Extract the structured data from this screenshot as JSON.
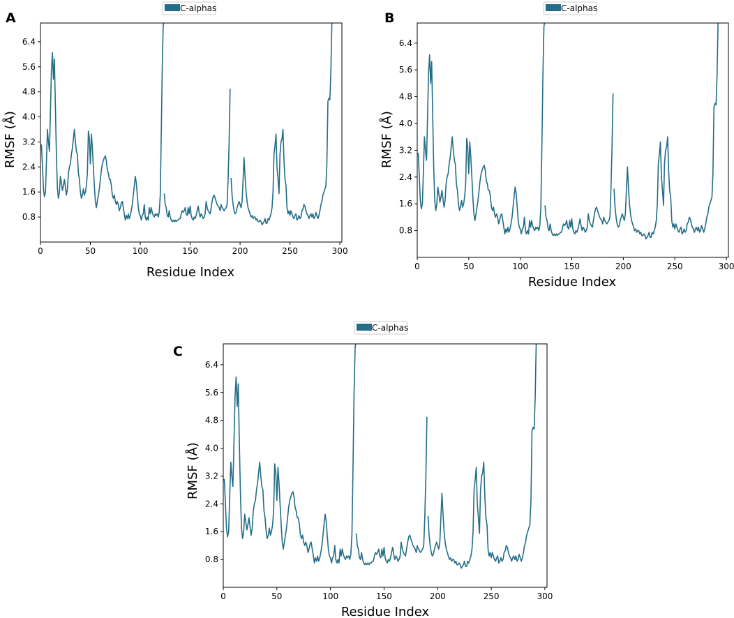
{
  "chart_data": [
    {
      "panel": "A",
      "type": "line",
      "xlabel": "Residue Index",
      "ylabel": "RMSF (Å)",
      "xlim": [
        0,
        302
      ],
      "ylim": [
        0,
        7.0
      ],
      "xticks": [
        0,
        50,
        100,
        150,
        200,
        250,
        300
      ],
      "yticks": [
        0.8,
        1.6,
        2.4,
        3.2,
        4.0,
        4.8,
        5.6,
        6.4
      ],
      "legend": {
        "label": "C-alphas",
        "position": "top-center"
      },
      "color": "#236d86",
      "series_ref": "rmsf"
    },
    {
      "panel": "B",
      "type": "line",
      "xlabel": "Residue Index",
      "ylabel": "RMSF (Å)",
      "xlim": [
        0,
        302
      ],
      "ylim": [
        0,
        7.0
      ],
      "xticks": [
        0,
        50,
        100,
        150,
        200,
        250,
        300
      ],
      "yticks": [
        0.8,
        1.6,
        2.4,
        3.2,
        4.0,
        4.8,
        5.6,
        6.4
      ],
      "legend": {
        "label": "C-alphas",
        "position": "top-center"
      },
      "color": "#236d86",
      "series_ref": "rmsf"
    },
    {
      "panel": "C",
      "type": "line",
      "xlabel": "Residue Index",
      "ylabel": "RMSF (Å)",
      "xlim": [
        0,
        302
      ],
      "ylim": [
        0,
        7.0
      ],
      "xticks": [
        0,
        50,
        100,
        150,
        200,
        250,
        300
      ],
      "yticks": [
        0.8,
        1.6,
        2.4,
        3.2,
        4.0,
        4.8,
        5.6,
        6.4
      ],
      "legend": {
        "label": "C-alphas",
        "position": "top-center"
      },
      "color": "#236d86",
      "series_ref": "rmsf"
    }
  ],
  "series": {
    "rmsf": [
      [
        [
          0,
          3.1
        ],
        [
          1,
          3.1
        ],
        [
          2,
          2.4
        ],
        [
          3,
          1.7
        ],
        [
          4,
          1.45
        ],
        [
          5,
          1.6
        ],
        [
          6,
          2.6
        ],
        [
          7,
          3.6
        ],
        [
          8,
          3.2
        ],
        [
          9,
          2.9
        ],
        [
          10,
          4.2
        ],
        [
          11,
          5.5
        ],
        [
          12,
          6.05
        ],
        [
          13,
          5.2
        ],
        [
          14,
          5.85
        ],
        [
          15,
          4.2
        ],
        [
          16,
          2.7
        ],
        [
          17,
          1.7
        ],
        [
          18,
          1.4
        ],
        [
          19,
          1.6
        ],
        [
          20,
          2.1
        ],
        [
          21,
          1.9
        ],
        [
          22,
          1.65
        ],
        [
          23,
          1.8
        ],
        [
          24,
          2.0
        ],
        [
          25,
          1.75
        ],
        [
          26,
          1.5
        ],
        [
          27,
          1.7
        ],
        [
          28,
          2.2
        ],
        [
          29,
          2.4
        ],
        [
          30,
          2.5
        ],
        [
          31,
          2.8
        ],
        [
          32,
          3.0
        ],
        [
          33,
          3.3
        ],
        [
          34,
          3.6
        ],
        [
          35,
          3.2
        ],
        [
          36,
          2.9
        ],
        [
          37,
          2.8
        ],
        [
          38,
          2.2
        ],
        [
          39,
          2.0
        ],
        [
          40,
          1.6
        ],
        [
          41,
          1.4
        ],
        [
          42,
          1.5
        ],
        [
          43,
          1.7
        ],
        [
          44,
          1.5
        ],
        [
          45,
          1.6
        ],
        [
          46,
          1.8
        ],
        [
          47,
          2.2
        ],
        [
          48,
          3.55
        ],
        [
          49,
          3.3
        ],
        [
          50,
          2.5
        ],
        [
          51,
          3.45
        ],
        [
          52,
          3.0
        ],
        [
          53,
          2.4
        ],
        [
          54,
          1.8
        ],
        [
          55,
          1.3
        ],
        [
          56,
          1.1
        ],
        [
          57,
          1.3
        ],
        [
          58,
          1.5
        ],
        [
          59,
          1.7
        ],
        [
          60,
          2.0
        ],
        [
          61,
          2.3
        ],
        [
          62,
          2.5
        ],
        [
          63,
          2.6
        ],
        [
          64,
          2.7
        ],
        [
          65,
          2.75
        ],
        [
          66,
          2.6
        ],
        [
          67,
          2.3
        ],
        [
          68,
          2.2
        ],
        [
          69,
          2.0
        ],
        [
          70,
          2.0
        ],
        [
          71,
          1.8
        ],
        [
          72,
          1.5
        ],
        [
          73,
          1.4
        ],
        [
          74,
          1.5
        ],
        [
          75,
          1.3
        ],
        [
          76,
          1.2
        ],
        [
          77,
          1.3
        ],
        [
          78,
          1.2
        ],
        [
          79,
          1.0
        ],
        [
          80,
          1.1
        ],
        [
          81,
          1.25
        ],
        [
          82,
          1.3
        ],
        [
          83,
          1.1
        ],
        [
          84,
          0.9
        ],
        [
          85,
          0.7
        ],
        [
          86,
          0.85
        ],
        [
          87,
          0.75
        ],
        [
          88,
          0.9
        ],
        [
          89,
          0.75
        ],
        [
          90,
          0.85
        ],
        [
          91,
          1.0
        ],
        [
          92,
          1.2
        ],
        [
          93,
          1.5
        ],
        [
          94,
          1.8
        ],
        [
          95,
          2.1
        ],
        [
          96,
          1.9
        ],
        [
          97,
          1.5
        ],
        [
          98,
          1.1
        ],
        [
          99,
          0.9
        ],
        [
          100,
          0.85
        ],
        [
          101,
          0.7
        ],
        [
          102,
          0.85
        ],
        [
          103,
          0.9
        ],
        [
          104,
          1.2
        ],
        [
          105,
          0.8
        ],
        [
          106,
          0.7
        ],
        [
          107,
          0.8
        ],
        [
          108,
          0.7
        ],
        [
          109,
          1.1
        ],
        [
          110,
          0.9
        ],
        [
          111,
          1.1
        ],
        [
          112,
          0.95
        ],
        [
          113,
          0.85
        ],
        [
          114,
          0.8
        ],
        [
          115,
          0.9
        ],
        [
          116,
          0.85
        ],
        [
          117,
          0.9
        ],
        [
          118,
          0.8
        ],
        [
          119,
          0.95
        ],
        [
          120,
          1.5
        ],
        [
          121,
          3.4
        ],
        [
          122,
          5.5
        ],
        [
          123,
          6.9
        ],
        [
          124,
          7.1
        ]
      ],
      [
        [
          124,
          1.55
        ],
        [
          125,
          1.2
        ],
        [
          126,
          1.1
        ],
        [
          127,
          0.85
        ],
        [
          128,
          0.8
        ],
        [
          129,
          1.0
        ],
        [
          130,
          0.8
        ],
        [
          131,
          0.7
        ],
        [
          132,
          0.65
        ],
        [
          133,
          0.7
        ],
        [
          134,
          0.65
        ],
        [
          135,
          0.7
        ],
        [
          136,
          0.65
        ],
        [
          137,
          0.7
        ],
        [
          138,
          0.7
        ],
        [
          139,
          0.75
        ],
        [
          140,
          0.75
        ],
        [
          141,
          0.9
        ],
        [
          142,
          1.0
        ],
        [
          143,
          0.95
        ],
        [
          144,
          1.0
        ],
        [
          145,
          1.1
        ],
        [
          146,
          0.9
        ],
        [
          147,
          0.85
        ],
        [
          148,
          1.1
        ],
        [
          149,
          0.9
        ],
        [
          150,
          1.15
        ],
        [
          151,
          0.85
        ],
        [
          152,
          0.75
        ],
        [
          153,
          0.7
        ],
        [
          154,
          0.8
        ],
        [
          155,
          0.75
        ],
        [
          156,
          0.85
        ],
        [
          157,
          1.0
        ],
        [
          158,
          1.15
        ],
        [
          159,
          0.95
        ],
        [
          160,
          0.8
        ],
        [
          161,
          0.9
        ],
        [
          162,
          0.85
        ],
        [
          163,
          0.75
        ],
        [
          164,
          0.8
        ],
        [
          165,
          0.9
        ],
        [
          166,
          1.3
        ],
        [
          167,
          1.1
        ],
        [
          168,
          1.0
        ],
        [
          169,
          0.95
        ],
        [
          170,
          0.9
        ],
        [
          171,
          1.1
        ],
        [
          172,
          1.3
        ],
        [
          173,
          1.45
        ],
        [
          174,
          1.5
        ],
        [
          175,
          1.4
        ],
        [
          176,
          1.3
        ],
        [
          177,
          1.2
        ],
        [
          178,
          1.15
        ],
        [
          179,
          1.1
        ],
        [
          180,
          1.0
        ],
        [
          181,
          1.2
        ],
        [
          182,
          1.1
        ],
        [
          183,
          1.05
        ],
        [
          184,
          1.0
        ],
        [
          185,
          1.05
        ],
        [
          186,
          1.1
        ],
        [
          187,
          1.2
        ],
        [
          188,
          2.0
        ],
        [
          189,
          3.2
        ],
        [
          190,
          4.9
        ]
      ],
      [
        [
          191,
          2.05
        ],
        [
          192,
          1.5
        ],
        [
          193,
          1.2
        ],
        [
          194,
          1.0
        ],
        [
          195,
          0.9
        ],
        [
          196,
          0.95
        ],
        [
          197,
          1.1
        ],
        [
          198,
          1.2
        ],
        [
          199,
          1.3
        ],
        [
          200,
          1.2
        ],
        [
          201,
          1.1
        ],
        [
          202,
          1.3
        ],
        [
          203,
          2.0
        ],
        [
          204,
          2.7
        ],
        [
          205,
          2.1
        ],
        [
          206,
          1.6
        ],
        [
          207,
          1.3
        ],
        [
          208,
          1.1
        ],
        [
          209,
          1.0
        ],
        [
          210,
          0.9
        ],
        [
          211,
          0.8
        ],
        [
          212,
          0.85
        ],
        [
          213,
          0.75
        ],
        [
          214,
          0.8
        ],
        [
          215,
          0.8
        ],
        [
          216,
          0.7
        ],
        [
          217,
          0.75
        ],
        [
          218,
          0.65
        ],
        [
          219,
          0.65
        ],
        [
          220,
          0.7
        ],
        [
          221,
          0.65
        ],
        [
          222,
          0.55
        ],
        [
          223,
          0.6
        ],
        [
          224,
          0.65
        ],
        [
          225,
          0.75
        ],
        [
          226,
          0.6
        ],
        [
          227,
          0.6
        ],
        [
          228,
          0.75
        ],
        [
          229,
          0.7
        ],
        [
          230,
          0.8
        ],
        [
          231,
          0.9
        ],
        [
          232,
          1.1
        ],
        [
          233,
          1.6
        ],
        [
          234,
          2.8
        ],
        [
          235,
          3.1
        ],
        [
          236,
          3.45
        ],
        [
          237,
          2.4
        ],
        [
          238,
          2.0
        ],
        [
          239,
          1.55
        ],
        [
          240,
          2.8
        ],
        [
          241,
          3.2
        ],
        [
          242,
          3.3
        ],
        [
          243,
          3.6
        ],
        [
          244,
          2.6
        ],
        [
          245,
          2.0
        ],
        [
          246,
          1.8
        ],
        [
          247,
          1.1
        ],
        [
          248,
          0.9
        ],
        [
          249,
          1.0
        ],
        [
          250,
          0.85
        ],
        [
          251,
          1.0
        ],
        [
          252,
          0.9
        ],
        [
          253,
          0.8
        ],
        [
          254,
          0.75
        ],
        [
          255,
          0.85
        ],
        [
          256,
          0.9
        ],
        [
          257,
          0.7
        ],
        [
          258,
          0.75
        ],
        [
          259,
          0.85
        ],
        [
          260,
          0.75
        ],
        [
          261,
          0.8
        ],
        [
          262,
          1.0
        ],
        [
          263,
          1.05
        ],
        [
          264,
          1.2
        ],
        [
          265,
          1.15
        ],
        [
          266,
          1.0
        ],
        [
          267,
          0.9
        ],
        [
          268,
          0.85
        ],
        [
          269,
          0.75
        ],
        [
          270,
          0.85
        ],
        [
          271,
          0.9
        ],
        [
          272,
          0.8
        ],
        [
          273,
          0.9
        ],
        [
          274,
          0.75
        ],
        [
          275,
          0.8
        ],
        [
          276,
          0.95
        ],
        [
          277,
          0.85
        ],
        [
          278,
          0.75
        ],
        [
          279,
          0.85
        ],
        [
          280,
          1.0
        ],
        [
          281,
          1.2
        ],
        [
          282,
          1.3
        ],
        [
          283,
          1.5
        ],
        [
          284,
          1.6
        ],
        [
          285,
          1.7
        ],
        [
          286,
          1.8
        ],
        [
          287,
          2.5
        ],
        [
          288,
          4.5
        ],
        [
          289,
          4.6
        ],
        [
          290,
          4.55
        ],
        [
          291,
          5.5
        ],
        [
          292,
          7.1
        ]
      ]
    ]
  }
}
